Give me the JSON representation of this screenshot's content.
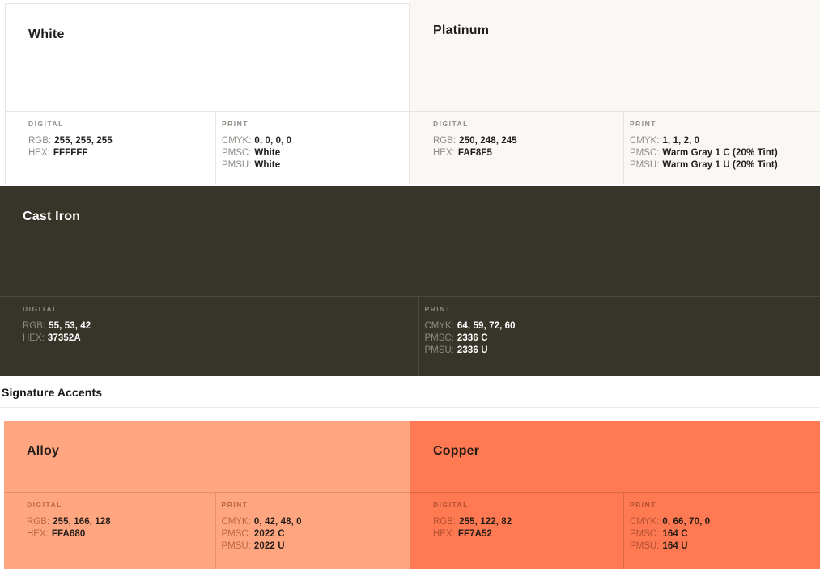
{
  "section_accents": {
    "heading": "Signature Accents"
  },
  "labels": {
    "digital": "DIGITAL",
    "print": "PRINT",
    "rgb": "RGB:",
    "hex": "HEX:",
    "cmyk": "CMYK:",
    "pmsc": "PMSC:",
    "pmsu": "PMSU:"
  },
  "colors": {
    "white": "#FFFFFF",
    "platinum": "#FAF8F5",
    "cast_iron": "#37352A",
    "alloy": "#FFA680",
    "copper": "#FF7A52"
  },
  "cards": {
    "white": {
      "name": "White",
      "rgb": "255, 255, 255",
      "hex": "FFFFFF",
      "cmyk": "0, 0, 0, 0",
      "pmsc": "White",
      "pmsu": "White"
    },
    "platinum": {
      "name": "Platinum",
      "rgb": "250, 248, 245",
      "hex": "FAF8F5",
      "cmyk": "1, 1, 2, 0",
      "pmsc": "Warm Gray 1 C (20% Tint)",
      "pmsu": "Warm Gray 1 U (20% Tint)"
    },
    "cast_iron": {
      "name": "Cast Iron",
      "rgb": "55, 53, 42",
      "hex": "37352A",
      "cmyk": "64, 59, 72, 60",
      "pmsc": "2336 C",
      "pmsu": "2336 U"
    },
    "alloy": {
      "name": "Alloy",
      "rgb": "255, 166, 128",
      "hex": "FFA680",
      "cmyk": "0, 42, 48, 0",
      "pmsc": "2022 C",
      "pmsu": "2022 U"
    },
    "copper": {
      "name": "Copper",
      "rgb": "255, 122, 82",
      "hex": "FF7A52",
      "cmyk": "0, 66, 70, 0",
      "pmsc": "164 C",
      "pmsu": "164 U"
    }
  }
}
